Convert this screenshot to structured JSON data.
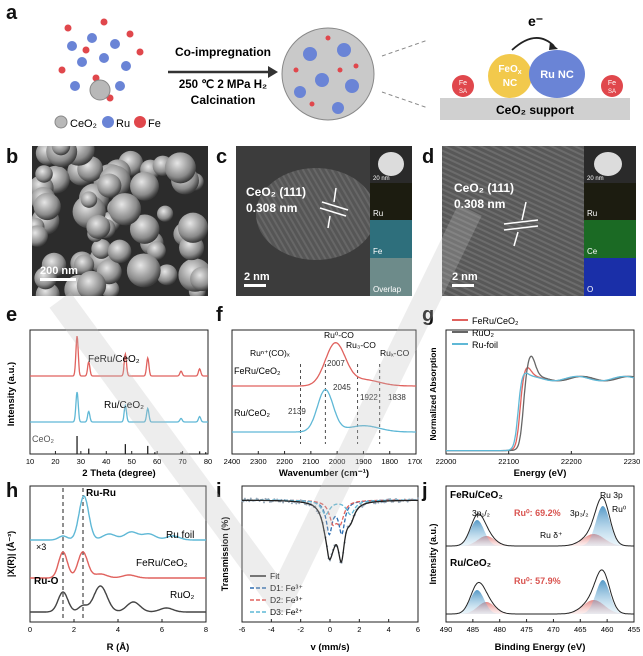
{
  "panel_letters": {
    "a": "a",
    "b": "b",
    "c": "c",
    "d": "d",
    "e": "e",
    "f": "f",
    "g": "g",
    "h": "h",
    "i": "i",
    "j": "j"
  },
  "panel_a": {
    "arrow_top": "Co-impregnation",
    "arrow_mid": "250 ℃ 2 MPa H₂",
    "arrow_bot": "Calcination",
    "legend_ceo2": "CeO₂",
    "legend_ru": "Ru",
    "legend_fe": "Fe",
    "electron": "e⁻",
    "feox_line1": "FeO",
    "feox_sub": "x",
    "feox_line2": "NC",
    "runc": "Ru NC",
    "fesa": "Fe",
    "fesa_sub": "SA",
    "support": "CeO₂ support"
  },
  "panel_b": {
    "scale": "200 nm"
  },
  "panel_c": {
    "plane": "CeO₂ (111)",
    "dspacing": "0.308 nm",
    "scale": "2 nm",
    "inset_scale": "20 nm",
    "maps": [
      "Ru",
      "Fe",
      "Overlap"
    ]
  },
  "panel_d": {
    "plane": "CeO₂ (111)",
    "dspacing": "0.308 nm",
    "scale": "2 nm",
    "inset_scale": "20 nm",
    "maps": [
      "Ru",
      "Ce",
      "O"
    ]
  },
  "chart_data": [
    {
      "panel": "e",
      "type": "line",
      "xlabel": "2 Theta (degree)",
      "ylabel": "Intensity (a.u.)",
      "xlim": [
        10,
        80
      ],
      "xticks": [
        10,
        20,
        30,
        40,
        50,
        60,
        70,
        80
      ],
      "series": [
        {
          "name": "FeRu/CeO₂",
          "color": "#e0625e",
          "peaks": [
            28.5,
            33.1,
            47.5,
            56.3,
            69.4,
            76.7
          ]
        },
        {
          "name": "Ru/CeO₂",
          "color": "#5fb8d6",
          "peaks": [
            28.5,
            33.1,
            47.5,
            56.3,
            69.4,
            76.7
          ]
        }
      ],
      "reference": {
        "name": "CeO₂",
        "x": [
          28.5,
          33.1,
          47.5,
          56.3,
          59.1,
          69.4,
          76.7,
          79.1
        ],
        "h": [
          1.0,
          0.3,
          0.55,
          0.45,
          0.1,
          0.1,
          0.15,
          0.1
        ]
      }
    },
    {
      "panel": "f",
      "type": "line",
      "xlabel": "Wavenumber (cm⁻¹)",
      "xlim": [
        2400,
        1700
      ],
      "xticks": [
        2400,
        2300,
        2200,
        2100,
        2000,
        1900,
        1800,
        1700
      ],
      "series": [
        {
          "name": "FeRu/CeO₂",
          "color": "#e0625e",
          "peak": 2007
        },
        {
          "name": "Ru/CeO₂",
          "color": "#5fb8d6",
          "peak": 2045
        }
      ],
      "guides": [
        2139,
        2045,
        1922,
        1838
      ],
      "annotations": [
        "Ruⁿ⁺(CO)ₓ",
        "Ru⁰-CO",
        "Ru₃-CO",
        "Ruₓ-CO",
        "2007",
        "2045",
        "1922",
        "1838",
        "2139"
      ]
    },
    {
      "panel": "g",
      "type": "line",
      "xlabel": "Energy (eV)",
      "ylabel": "Normalized Absorption",
      "xlim": [
        22000,
        22300
      ],
      "xticks": [
        22000,
        22100,
        22200,
        22300
      ],
      "series": [
        {
          "name": "FeRu/CeO₂",
          "color": "#e0625e"
        },
        {
          "name": "RuO₂",
          "color": "#666666"
        },
        {
          "name": "Ru-foil",
          "color": "#5fb8d6"
        }
      ]
    },
    {
      "panel": "h",
      "type": "line",
      "xlabel": "R (Å)",
      "ylabel": "|X(R)| (Å⁻³)",
      "xlim": [
        0,
        8
      ],
      "xticks": [
        0,
        2,
        4,
        6,
        8
      ],
      "series": [
        {
          "name": "Ru foil",
          "color": "#5fb8d6",
          "peak": 2.4
        },
        {
          "name": "FeRu/CeO₂",
          "color": "#e0625e",
          "peak": 2.4,
          "peak2": 1.5,
          "scale": "×3"
        },
        {
          "name": "RuO₂",
          "color": "#444444",
          "peak": 1.5
        }
      ],
      "annotations": [
        "Ru-Ru",
        "Ru-O",
        "×3"
      ]
    },
    {
      "panel": "i",
      "type": "line",
      "xlabel": "v (mm/s)",
      "ylabel": "Transmission (%)",
      "xlim": [
        -6,
        6
      ],
      "xticks": [
        -6,
        -4,
        -2,
        0,
        2,
        4,
        6
      ],
      "legend": [
        "Fit",
        "D1: Fe³⁺",
        "D2: Fe³⁺",
        "D3: Fe²⁺"
      ]
    },
    {
      "panel": "j",
      "type": "line",
      "xlabel": "Binding Energy (eV)",
      "ylabel": "Intensity (a.u.)",
      "xlim": [
        490,
        455
      ],
      "xticks": [
        490,
        485,
        480,
        475,
        470,
        465,
        460,
        455
      ],
      "series": [
        {
          "name": "FeRu/CeO₂",
          "ru0": "69.2%"
        },
        {
          "name": "Ru/CeO₂",
          "ru0": "57.9%"
        }
      ],
      "annotations": [
        "Ru 3p",
        "3p₁/₂",
        "3p₃/₂",
        "Ru⁰",
        "Ruᵟ⁺",
        "Ru⁰: 69.2%",
        "Ru⁰: 57.9%"
      ]
    }
  ],
  "texts": {
    "e_fe": "FeRu/CeO₂",
    "e_ru": "Ru/CeO₂",
    "e_ref": "CeO₂",
    "f_fe": "FeRu/CeO₂",
    "f_ru": "Ru/CeO₂",
    "f_a1": "Ruⁿ⁺(CO)ₓ",
    "f_a2": "Ru⁰-CO",
    "f_a3": "Ru₃-CO",
    "f_a4": "Ruₓ-CO",
    "f_n1": "2007",
    "f_n2": "2045",
    "f_n3": "1922",
    "f_n4": "1838",
    "f_n5": "2139",
    "g_l1": "FeRu/CeO₂",
    "g_l2": "RuO₂",
    "g_l3": "Ru-foil",
    "h_rr": "Ru-Ru",
    "h_ro": "Ru-O",
    "h_x3": "×3",
    "h_s1": "Ru foil",
    "h_s2": "FeRu/CeO₂",
    "h_s3": "RuO₂",
    "i_l1": "Fit",
    "i_l2": "D1: Fe³⁺",
    "i_l3": "D2: Fe³⁺",
    "i_l4": "D3: Fe²⁺",
    "j_t1": "FeRu/CeO₂",
    "j_t2": "Ru/CeO₂",
    "j_ru3p": "Ru 3p",
    "j_p12": "3p₁/₂",
    "j_p32": "3p₃/₂",
    "j_ru0": "Ru⁰",
    "j_run": "Ru δ⁺",
    "j_pct1": "Ru⁰: 69.2%",
    "j_pct2": "Ru⁰: 57.9%"
  }
}
